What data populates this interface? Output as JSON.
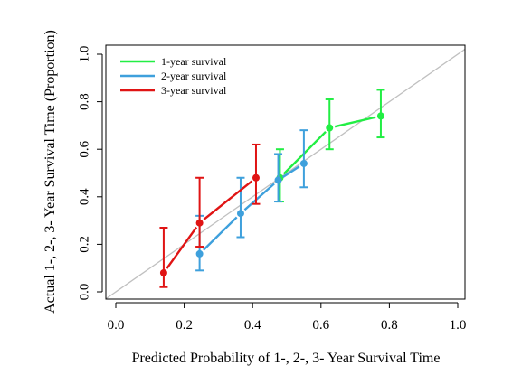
{
  "chart_data": {
    "type": "line",
    "title": "",
    "xlabel": "Predicted Probability of 1-, 2-, 3- Year Survival Time",
    "ylabel": "Actual 1-, 2-, 3- Year Survival Time (Proportion)",
    "xlim": [
      0,
      1
    ],
    "ylim": [
      0,
      1
    ],
    "xticks": [
      "0.0",
      "0.2",
      "0.4",
      "0.6",
      "0.8",
      "1.0"
    ],
    "yticks": [
      "0.0",
      "0.2",
      "0.4",
      "0.6",
      "0.8",
      "1.0"
    ],
    "grid": false,
    "legend_position": "top-left",
    "reference_line": {
      "from": [
        0,
        0
      ],
      "to": [
        1,
        1
      ],
      "color": "#c0c0c0"
    },
    "series": [
      {
        "name": "1-year survival",
        "color": "#22ee44",
        "points": [
          {
            "x": 0.48,
            "y": 0.48,
            "lo": 0.38,
            "hi": 0.6
          },
          {
            "x": 0.625,
            "y": 0.69,
            "lo": 0.6,
            "hi": 0.81
          },
          {
            "x": 0.775,
            "y": 0.74,
            "lo": 0.65,
            "hi": 0.85
          }
        ]
      },
      {
        "name": "2-year survival",
        "color": "#3ea0dc",
        "points": [
          {
            "x": 0.245,
            "y": 0.16,
            "lo": 0.09,
            "hi": 0.32
          },
          {
            "x": 0.365,
            "y": 0.33,
            "lo": 0.23,
            "hi": 0.48
          },
          {
            "x": 0.475,
            "y": 0.47,
            "lo": 0.38,
            "hi": 0.58
          },
          {
            "x": 0.55,
            "y": 0.54,
            "lo": 0.44,
            "hi": 0.68
          }
        ]
      },
      {
        "name": "3-year survival",
        "color": "#e01414",
        "points": [
          {
            "x": 0.14,
            "y": 0.08,
            "lo": 0.02,
            "hi": 0.27
          },
          {
            "x": 0.245,
            "y": 0.29,
            "lo": 0.19,
            "hi": 0.48
          },
          {
            "x": 0.41,
            "y": 0.48,
            "lo": 0.37,
            "hi": 0.62
          }
        ]
      }
    ]
  }
}
